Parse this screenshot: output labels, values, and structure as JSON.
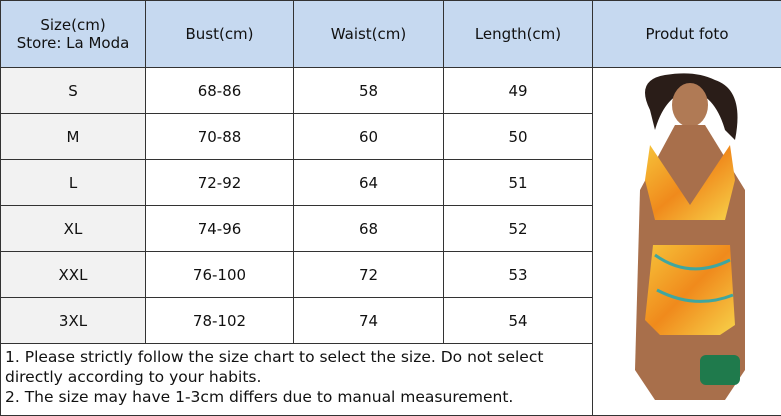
{
  "header": {
    "size": [
      "Size(cm)",
      "Store: La Moda"
    ],
    "columns": [
      "Bust(cm)",
      "Waist(cm)",
      "Length(cm)",
      "Produt foto"
    ]
  },
  "table": {
    "rows": [
      [
        "S",
        "68-86",
        "58",
        "49"
      ],
      [
        "M",
        "70-88",
        "60",
        "50"
      ],
      [
        "L",
        "72-92",
        "64",
        "51"
      ],
      [
        "XL",
        "74-96",
        "68",
        "52"
      ],
      [
        "XXL",
        "76-100",
        "72",
        "53"
      ],
      [
        "3XL",
        "78-102",
        "74",
        "54"
      ]
    ]
  },
  "notes": [
    "1. Please strictly follow the size chart to select the size. Do not select directly according to your habits.",
    "2. The size may have 1-3cm differs due to manual measurement."
  ]
}
